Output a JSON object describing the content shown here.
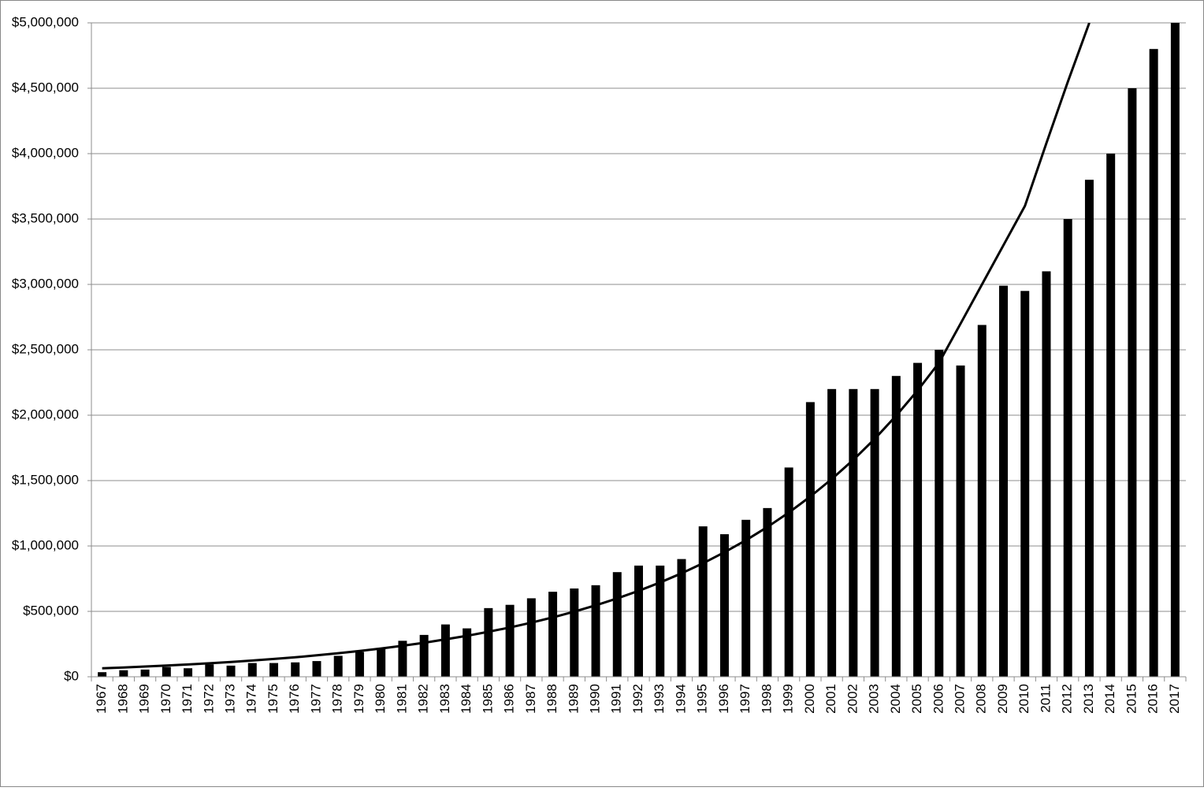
{
  "chart_data": {
    "type": "bar",
    "categories": [
      "1967",
      "1968",
      "1969",
      "1970",
      "1971",
      "1972",
      "1973",
      "1974",
      "1975",
      "1976",
      "1977",
      "1978",
      "1979",
      "1980",
      "1981",
      "1982",
      "1983",
      "1984",
      "1985",
      "1986",
      "1987",
      "1988",
      "1989",
      "1990",
      "1991",
      "1992",
      "1993",
      "1994",
      "1995",
      "1996",
      "1997",
      "1998",
      "1999",
      "2000",
      "2001",
      "2002",
      "2003",
      "2004",
      "2005",
      "2006",
      "2007",
      "2008",
      "2009",
      "2010",
      "2011",
      "2012",
      "2013",
      "2014",
      "2015",
      "2016",
      "2017"
    ],
    "series": [
      {
        "type": "bar",
        "color": "#000000",
        "values": [
          35000,
          50000,
          55000,
          75000,
          65000,
          95000,
          85000,
          105000,
          105000,
          110000,
          120000,
          160000,
          190000,
          220000,
          275000,
          320000,
          400000,
          370000,
          525000,
          550000,
          600000,
          650000,
          675000,
          700000,
          800000,
          850000,
          850000,
          900000,
          1150000,
          1090000,
          1200000,
          1290000,
          1600000,
          2100000,
          2200000,
          2200000,
          2200000,
          2300000,
          2400000,
          2500000,
          2380000,
          2690000,
          2990000,
          2950000,
          3100000,
          3500000,
          3800000,
          4000000,
          4500000,
          4800000,
          5000000
        ]
      },
      {
        "type": "line",
        "color": "#000000",
        "values": [
          65000,
          71000,
          78000,
          86000,
          94000,
          103000,
          113000,
          124000,
          136000,
          149000,
          164000,
          180000,
          197000,
          216000,
          237000,
          260000,
          286000,
          313000,
          344000,
          377000,
          414000,
          454000,
          498000,
          546000,
          599000,
          657000,
          721000,
          791000,
          868000,
          952000,
          1044000,
          1145000,
          1256000,
          1378000,
          1512000,
          1658000,
          1819000,
          1996000,
          2189000,
          2402000,
          2700000,
          3000000,
          3300000,
          3600000,
          4080000,
          4550000,
          5000000,
          null,
          null,
          null,
          null
        ]
      }
    ],
    "ylim": [
      0,
      5000000
    ],
    "yticks": [
      {
        "value": 0,
        "label": "$0"
      },
      {
        "value": 500000,
        "label": "$500,000"
      },
      {
        "value": 1000000,
        "label": "$1,000,000"
      },
      {
        "value": 1500000,
        "label": "$1,500,000"
      },
      {
        "value": 2000000,
        "label": "$2,000,000"
      },
      {
        "value": 2500000,
        "label": "$2,500,000"
      },
      {
        "value": 3000000,
        "label": "$3,000,000"
      },
      {
        "value": 3500000,
        "label": "$3,500,000"
      },
      {
        "value": 4000000,
        "label": "$4,000,000"
      },
      {
        "value": 4500000,
        "label": "$4,500,000"
      },
      {
        "value": 5000000,
        "label": "$5,000,000"
      }
    ],
    "grid": true
  }
}
